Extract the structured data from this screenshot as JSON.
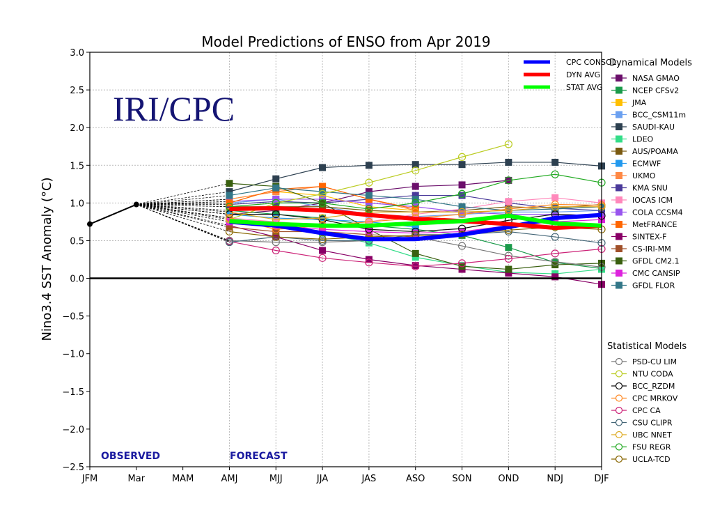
{
  "chart_data": {
    "type": "line",
    "title": "Model Predictions of ENSO from Apr 2019",
    "ylabel": "Nino3.4 SST Anomaly (°C)",
    "xlabel": "",
    "ylim": [
      -2.5,
      3.0
    ],
    "yticks": [
      "3.0",
      "2.5",
      "2.0",
      "1.5",
      "1.0",
      "0.5",
      "0.0",
      "−0.5",
      "−1.0",
      "−1.5",
      "−2.0",
      "−2.5"
    ],
    "categories": [
      "JFM",
      "Mar",
      "MAM",
      "AMJ",
      "MJJ",
      "JJA",
      "JAS",
      "ASO",
      "SON",
      "OND",
      "NDJ",
      "DJF"
    ],
    "forecast_categories": [
      "AMJ",
      "MJJ",
      "JJA",
      "JAS",
      "ASO",
      "SON",
      "OND",
      "NDJ",
      "DJF"
    ],
    "grid": true,
    "watermark": "IRI/CPC",
    "annotations": {
      "observed": "OBSERVED",
      "forecast": "FORECAST"
    },
    "observed": {
      "categories": [
        "JFM",
        "Mar"
      ],
      "values": [
        0.72,
        0.98
      ],
      "color": "#000000"
    },
    "averages": [
      {
        "name": "CPC CONSOL",
        "color": "#0000ff",
        "values": [
          0.75,
          0.7,
          0.6,
          0.52,
          0.52,
          0.58,
          0.68,
          0.8,
          0.84
        ]
      },
      {
        "name": "DYN AVG",
        "color": "#ff0000",
        "values": [
          0.92,
          0.93,
          0.9,
          0.84,
          0.79,
          0.76,
          0.72,
          0.67,
          0.7
        ]
      },
      {
        "name": "STAT AVG",
        "color": "#00ff00",
        "values": [
          0.76,
          0.72,
          0.7,
          0.7,
          0.73,
          0.76,
          0.83,
          0.73,
          0.7
        ]
      }
    ],
    "dynamical_title": "Dynamical Models",
    "dynamical": [
      {
        "name": "NASA GMAO",
        "color": "#6b0f6b",
        "values": [
          0.85,
          0.9,
          1.0,
          1.15,
          1.22,
          1.24,
          1.3,
          null,
          null
        ]
      },
      {
        "name": "NCEP CFSv2",
        "color": "#1a9a4a",
        "values": [
          0.9,
          0.85,
          0.8,
          0.7,
          0.65,
          0.57,
          0.41,
          0.21,
          0.13
        ]
      },
      {
        "name": "JMA",
        "color": "#ffbf00",
        "values": [
          1.05,
          1.15,
          1.1,
          0.95,
          0.9,
          null,
          null,
          null,
          null
        ]
      },
      {
        "name": "BCC_CSM11m",
        "color": "#6ba0f0",
        "values": [
          1.0,
          1.05,
          0.95,
          0.85,
          0.82,
          0.85,
          0.88,
          0.88,
          0.9
        ]
      },
      {
        "name": "SAUDI-KAU",
        "color": "#2d4050",
        "values": [
          1.15,
          1.32,
          1.47,
          1.5,
          1.51,
          1.51,
          1.54,
          1.54,
          1.49
        ]
      },
      {
        "name": "LDEO",
        "color": "#33dd88",
        "values": [
          0.8,
          0.7,
          0.6,
          0.47,
          0.28,
          0.17,
          0.08,
          0.06,
          0.12
        ]
      },
      {
        "name": "AUS/POAMA",
        "color": "#7a5a10",
        "values": [
          0.95,
          0.95,
          0.95,
          0.9,
          0.88,
          0.9,
          0.95,
          0.93,
          0.98
        ]
      },
      {
        "name": "ECMWF",
        "color": "#2299ee",
        "values": [
          0.85,
          0.8,
          0.78,
          0.75,
          0.68,
          null,
          null,
          null,
          null
        ]
      },
      {
        "name": "UKMO",
        "color": "#ff8844",
        "values": [
          1.05,
          1.15,
          1.22,
          1.05,
          0.9,
          null,
          null,
          null,
          null
        ]
      },
      {
        "name": "KMA SNU",
        "color": "#4a3a9a",
        "values": [
          0.98,
          1.02,
          1.0,
          1.05,
          1.1,
          1.1,
          1.0,
          0.93,
          0.9
        ]
      },
      {
        "name": "IOCAS ICM",
        "color": "#ff88bb",
        "values": [
          0.8,
          0.75,
          0.7,
          0.75,
          0.85,
          0.92,
          1.02,
          1.07,
          1.0
        ]
      },
      {
        "name": "COLA CCSM4",
        "color": "#9955ee",
        "values": [
          1.02,
          1.05,
          1.05,
          1.0,
          0.95,
          0.88,
          0.85,
          0.85,
          0.83
        ]
      },
      {
        "name": "MetFRANCE",
        "color": "#ff6600",
        "values": [
          1.0,
          1.18,
          1.22,
          1.05,
          0.92,
          null,
          null,
          null,
          null
        ]
      },
      {
        "name": "SINTEX-F",
        "color": "#880066",
        "values": [
          0.7,
          0.55,
          0.37,
          0.25,
          0.17,
          0.12,
          0.07,
          0.02,
          -0.08
        ]
      },
      {
        "name": "CS-IRI-MM",
        "color": "#a0502a",
        "values": [
          0.68,
          0.62,
          0.62,
          0.58,
          0.55,
          null,
          null,
          null,
          null
        ]
      },
      {
        "name": "GFDL CM2.1",
        "color": "#3a6010",
        "values": [
          1.26,
          1.22,
          1.0,
          0.65,
          0.33,
          0.16,
          0.12,
          0.18,
          0.2
        ]
      },
      {
        "name": "CMC CANSIP",
        "color": "#dd22dd",
        "values": [
          0.75,
          0.7,
          0.65,
          0.62,
          0.6,
          0.62,
          0.7,
          0.75,
          0.78
        ]
      },
      {
        "name": "GFDL FLOR",
        "color": "#337788",
        "values": [
          1.1,
          1.2,
          1.15,
          1.1,
          1.05,
          0.95,
          0.9,
          0.92,
          0.95
        ]
      }
    ],
    "statistical_title": "Statistical Models",
    "statistical": [
      {
        "name": "PSD-CU LIM",
        "color": "#777777",
        "values": [
          0.5,
          0.48,
          0.48,
          0.5,
          0.55,
          0.43,
          0.3,
          0.22,
          0.15
        ]
      },
      {
        "name": "NTU CODA",
        "color": "#bbcc22",
        "values": [
          0.78,
          1.0,
          1.12,
          1.27,
          1.43,
          1.61,
          1.78,
          null,
          null
        ]
      },
      {
        "name": "BCC_RZDM",
        "color": "#111111",
        "values": [
          0.85,
          0.85,
          0.78,
          0.65,
          0.62,
          0.66,
          0.77,
          0.85,
          0.83
        ]
      },
      {
        "name": "CPC MRKOV",
        "color": "#ff8822",
        "values": [
          0.8,
          0.65,
          0.7,
          0.75,
          0.8,
          0.85,
          0.92,
          0.98,
          0.97
        ]
      },
      {
        "name": "CPC CA",
        "color": "#cc2277",
        "values": [
          0.49,
          0.37,
          0.27,
          0.21,
          0.16,
          0.2,
          0.26,
          0.33,
          0.39
        ]
      },
      {
        "name": "CSU CLIPR",
        "color": "#446677",
        "values": [
          0.48,
          0.55,
          0.5,
          0.5,
          0.58,
          0.58,
          0.62,
          0.55,
          0.47
        ]
      },
      {
        "name": "UBC NNET",
        "color": "#ddaa22",
        "values": [
          0.88,
          0.78,
          0.8,
          0.88,
          0.88,
          0.88,
          0.9,
          0.95,
          0.95
        ]
      },
      {
        "name": "FSU REGR",
        "color": "#22aa22",
        "values": [
          0.95,
          1.0,
          1.0,
          0.92,
          1.0,
          1.12,
          1.3,
          1.38,
          1.27
        ]
      },
      {
        "name": "UCLA-TCD",
        "color": "#886600",
        "values": [
          0.62,
          0.55,
          0.52,
          0.55,
          0.57,
          0.58,
          0.64,
          0.68,
          0.65
        ]
      }
    ]
  }
}
